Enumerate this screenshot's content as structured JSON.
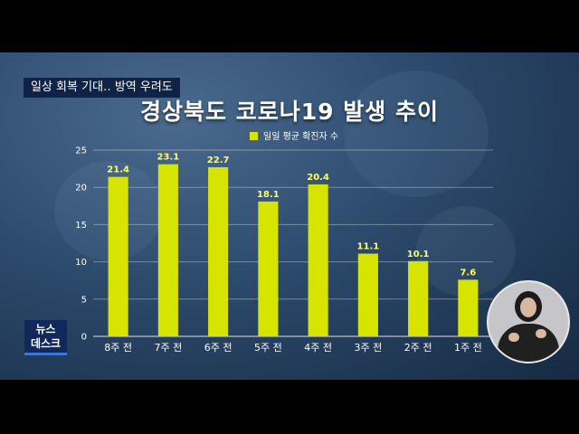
{
  "header": {
    "topic": "일상 회복 기대‥ 방역 우려도"
  },
  "chart_data": {
    "type": "bar",
    "title": "경상북도 코로나19 발생 추이",
    "legend": "일일 평균 확진자 수",
    "categories": [
      "8주 전",
      "7주 전",
      "6주 전",
      "5주 전",
      "4주 전",
      "3주 전",
      "2주 전",
      "1주 전"
    ],
    "values": [
      21.4,
      23.1,
      22.7,
      18.1,
      20.4,
      11.1,
      10.1,
      7.6
    ],
    "labels": [
      "21.4",
      "23.1",
      "22.7",
      "18.1",
      "20.4",
      "11.1",
      "10.1",
      "7.6"
    ],
    "ylim": [
      0,
      25
    ],
    "yticks": [
      0,
      5,
      10,
      15,
      20,
      25
    ],
    "grid": true,
    "legend_position": "top-center",
    "bar_color": "#d6e400"
  },
  "branding": {
    "logo_line1": "뉴스",
    "logo_line2": "데스크"
  },
  "icons": {
    "interpreter": "sign-language-interpreter-icon"
  }
}
